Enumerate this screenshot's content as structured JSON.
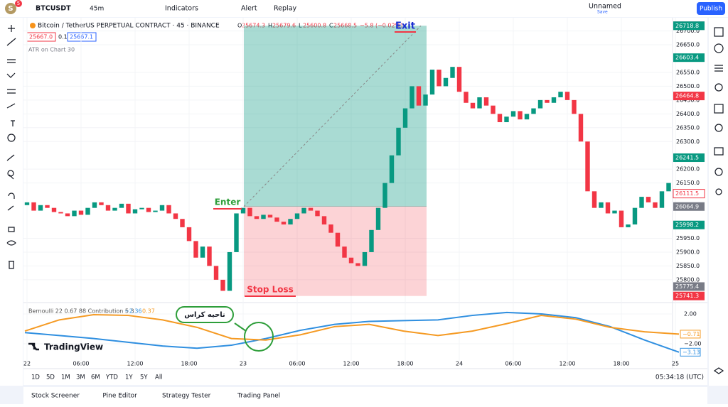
{
  "toolbar": {
    "avatar": "S",
    "badge": "5",
    "symbol": "BTCUSDT",
    "interval": "45m",
    "indicators": "Indicators",
    "alert": "Alert",
    "replay": "Replay",
    "layout_name": "Unnamed",
    "layout_status": "Save",
    "publish": "Publish"
  },
  "legend": {
    "title": "Bitcoin / TetherUS PERPETUAL CONTRACT · 45 · BINANCE",
    "ohlc": [
      {
        "k": "O",
        "v": "25674.3"
      },
      {
        "k": "H",
        "v": "25679.6"
      },
      {
        "k": "L",
        "v": "25600.8"
      },
      {
        "k": "C",
        "v": "25668.5"
      }
    ],
    "change": "−5.8 (−0.02%)",
    "sell": "25667.0",
    "spread": "0.1",
    "buy": "25667.1",
    "indicator": "ATR on Chart 30"
  },
  "annotations": {
    "exit": "Exit",
    "enter": "Enter",
    "stop": "Stop Loss",
    "note": "ناحیه کراس"
  },
  "chart": {
    "ylim": [
      25720,
      26740
    ],
    "yticks": [
      {
        "value": 26700,
        "label": "26700.0"
      },
      {
        "value": 26650,
        "label": "26650.0"
      },
      {
        "value": 26550,
        "label": "26550.0"
      },
      {
        "value": 26500,
        "label": "26500.0"
      },
      {
        "value": 26450,
        "label": "26450.0"
      },
      {
        "value": 26400,
        "label": "26400.0"
      },
      {
        "value": 26350,
        "label": "26350.0"
      },
      {
        "value": 26300,
        "label": "26300.0"
      },
      {
        "value": 26200,
        "label": "26200.0"
      },
      {
        "value": 26150,
        "label": "26150.0"
      },
      {
        "value": 25950,
        "label": "25950.0"
      },
      {
        "value": 25900,
        "label": "25900.0"
      },
      {
        "value": 25850,
        "label": "25850.0"
      },
      {
        "value": 25800,
        "label": "25800.0"
      }
    ],
    "price_tags": [
      {
        "value": 26719,
        "label": "26719.0",
        "color": "#787b86"
      },
      {
        "value": 26718.8,
        "label": "26718.8",
        "color": "#089981"
      },
      {
        "value": 26603.4,
        "label": "26603.4",
        "color": "#089981"
      },
      {
        "value": 26464.8,
        "label": "26464.8",
        "color": "#f23645"
      },
      {
        "value": 26241.5,
        "label": "26241.5",
        "color": "#089981"
      },
      {
        "value": 26111.5,
        "label": "26111.5",
        "color": "#ffffff"
      },
      {
        "value": 26064.9,
        "label": "26064.9",
        "color": "#787b86"
      },
      {
        "value": 25998.2,
        "label": "25998.2",
        "color": "#089981"
      },
      {
        "value": 25775.4,
        "label": "25775.4",
        "color": "#787b86"
      },
      {
        "value": 25741.3,
        "label": "25741.3",
        "color": "#f23645"
      }
    ],
    "time_ticks": [
      "22",
      "06:00",
      "12:00",
      "18:00",
      "23",
      "06:00",
      "12:00",
      "18:00",
      "24",
      "06:00",
      "12:00",
      "18:00",
      "25"
    ],
    "position": {
      "entry": 26064.9,
      "target": 26718.8,
      "stop": 25741.3
    },
    "candles": {
      "open": [
        26070,
        26080,
        26050,
        26070,
        26060,
        26045,
        26040,
        26030,
        26050,
        26035,
        26060,
        26080,
        26070,
        26050,
        26060,
        26075,
        26040,
        26055,
        26060,
        26045,
        26050,
        26070,
        26040,
        26020,
        25990,
        25940,
        25880,
        25920,
        25850,
        25800,
        25760,
        25900,
        26040,
        26060,
        26030,
        26020,
        26035,
        26025,
        26010,
        26000,
        26020,
        26040,
        26060,
        26050,
        26030,
        26000,
        25970,
        25920,
        25880,
        25860,
        25850,
        25900,
        25980,
        26060,
        26150,
        26250,
        26350,
        26420,
        26500,
        26430,
        26470,
        26560,
        26500,
        26530,
        26570,
        26480,
        26440,
        26420,
        26460,
        26430,
        26400,
        26370,
        26390,
        26410,
        26380,
        26400,
        26420,
        26450,
        26440,
        26460,
        26480,
        26450,
        26400,
        26300,
        26120,
        26060,
        26080,
        26040,
        26050,
        25990,
        26000,
        26060,
        26100,
        26080,
        26060,
        26120
      ],
      "close": [
        26080,
        26050,
        26070,
        26060,
        26045,
        26040,
        26030,
        26050,
        26035,
        26060,
        26080,
        26070,
        26050,
        26060,
        26075,
        26040,
        26055,
        26060,
        26045,
        26050,
        26070,
        26040,
        26020,
        25990,
        25940,
        25880,
        25920,
        25850,
        25800,
        25760,
        25900,
        26040,
        26060,
        26030,
        26020,
        26035,
        26025,
        26010,
        26000,
        26020,
        26040,
        26060,
        26050,
        26030,
        26000,
        25970,
        25920,
        25880,
        25860,
        25850,
        25900,
        25980,
        26060,
        26150,
        26250,
        26350,
        26420,
        26500,
        26430,
        26470,
        26560,
        26500,
        26530,
        26570,
        26480,
        26440,
        26420,
        26460,
        26430,
        26400,
        26370,
        26390,
        26410,
        26380,
        26400,
        26420,
        26450,
        26440,
        26460,
        26480,
        26450,
        26400,
        26300,
        26120,
        26060,
        26080,
        26040,
        26050,
        25990,
        26000,
        26060,
        26100,
        26080,
        26060,
        26120,
        26150
      ]
    }
  },
  "indicator": {
    "name": "Bernoulli 22 0.67 88 Contribution 5 3",
    "value1": "−2.36",
    "value2": "0.37",
    "ylim": [
      -4.1,
      3.33
    ],
    "yticks": [
      {
        "value": 2,
        "label": "2.00"
      },
      {
        "value": -2,
        "label": "−2.00"
      }
    ],
    "series": [
      {
        "color": "#2f8fe0",
        "values": [
          -0.5,
          -0.9,
          -1.3,
          -1.8,
          -2.3,
          -2.6,
          -2.2,
          -1.3,
          -0.2,
          0.6,
          1.0,
          1.1,
          1.2,
          1.8,
          2.2,
          2.0,
          1.5,
          0.3,
          -1.5,
          -3.13
        ],
        "tag": "−3.13"
      },
      {
        "color": "#f59a23",
        "values": [
          -0.3,
          1.2,
          1.9,
          1.8,
          1.2,
          0.2,
          -1.3,
          -1.5,
          -0.8,
          0.3,
          0.6,
          -0.3,
          -0.9,
          -0.3,
          0.7,
          1.8,
          1.3,
          0.2,
          -0.4,
          -0.71
        ],
        "tag": "−0.71"
      }
    ]
  },
  "watermark": "TradingView",
  "ranges": [
    "1D",
    "5D",
    "1M",
    "3M",
    "6M",
    "YTD",
    "1Y",
    "5Y",
    "All"
  ],
  "clock": "05:34:18 (UTC)",
  "tabs": [
    "Stock Screener",
    "Pine Editor",
    "Strategy Tester",
    "Trading Panel"
  ]
}
